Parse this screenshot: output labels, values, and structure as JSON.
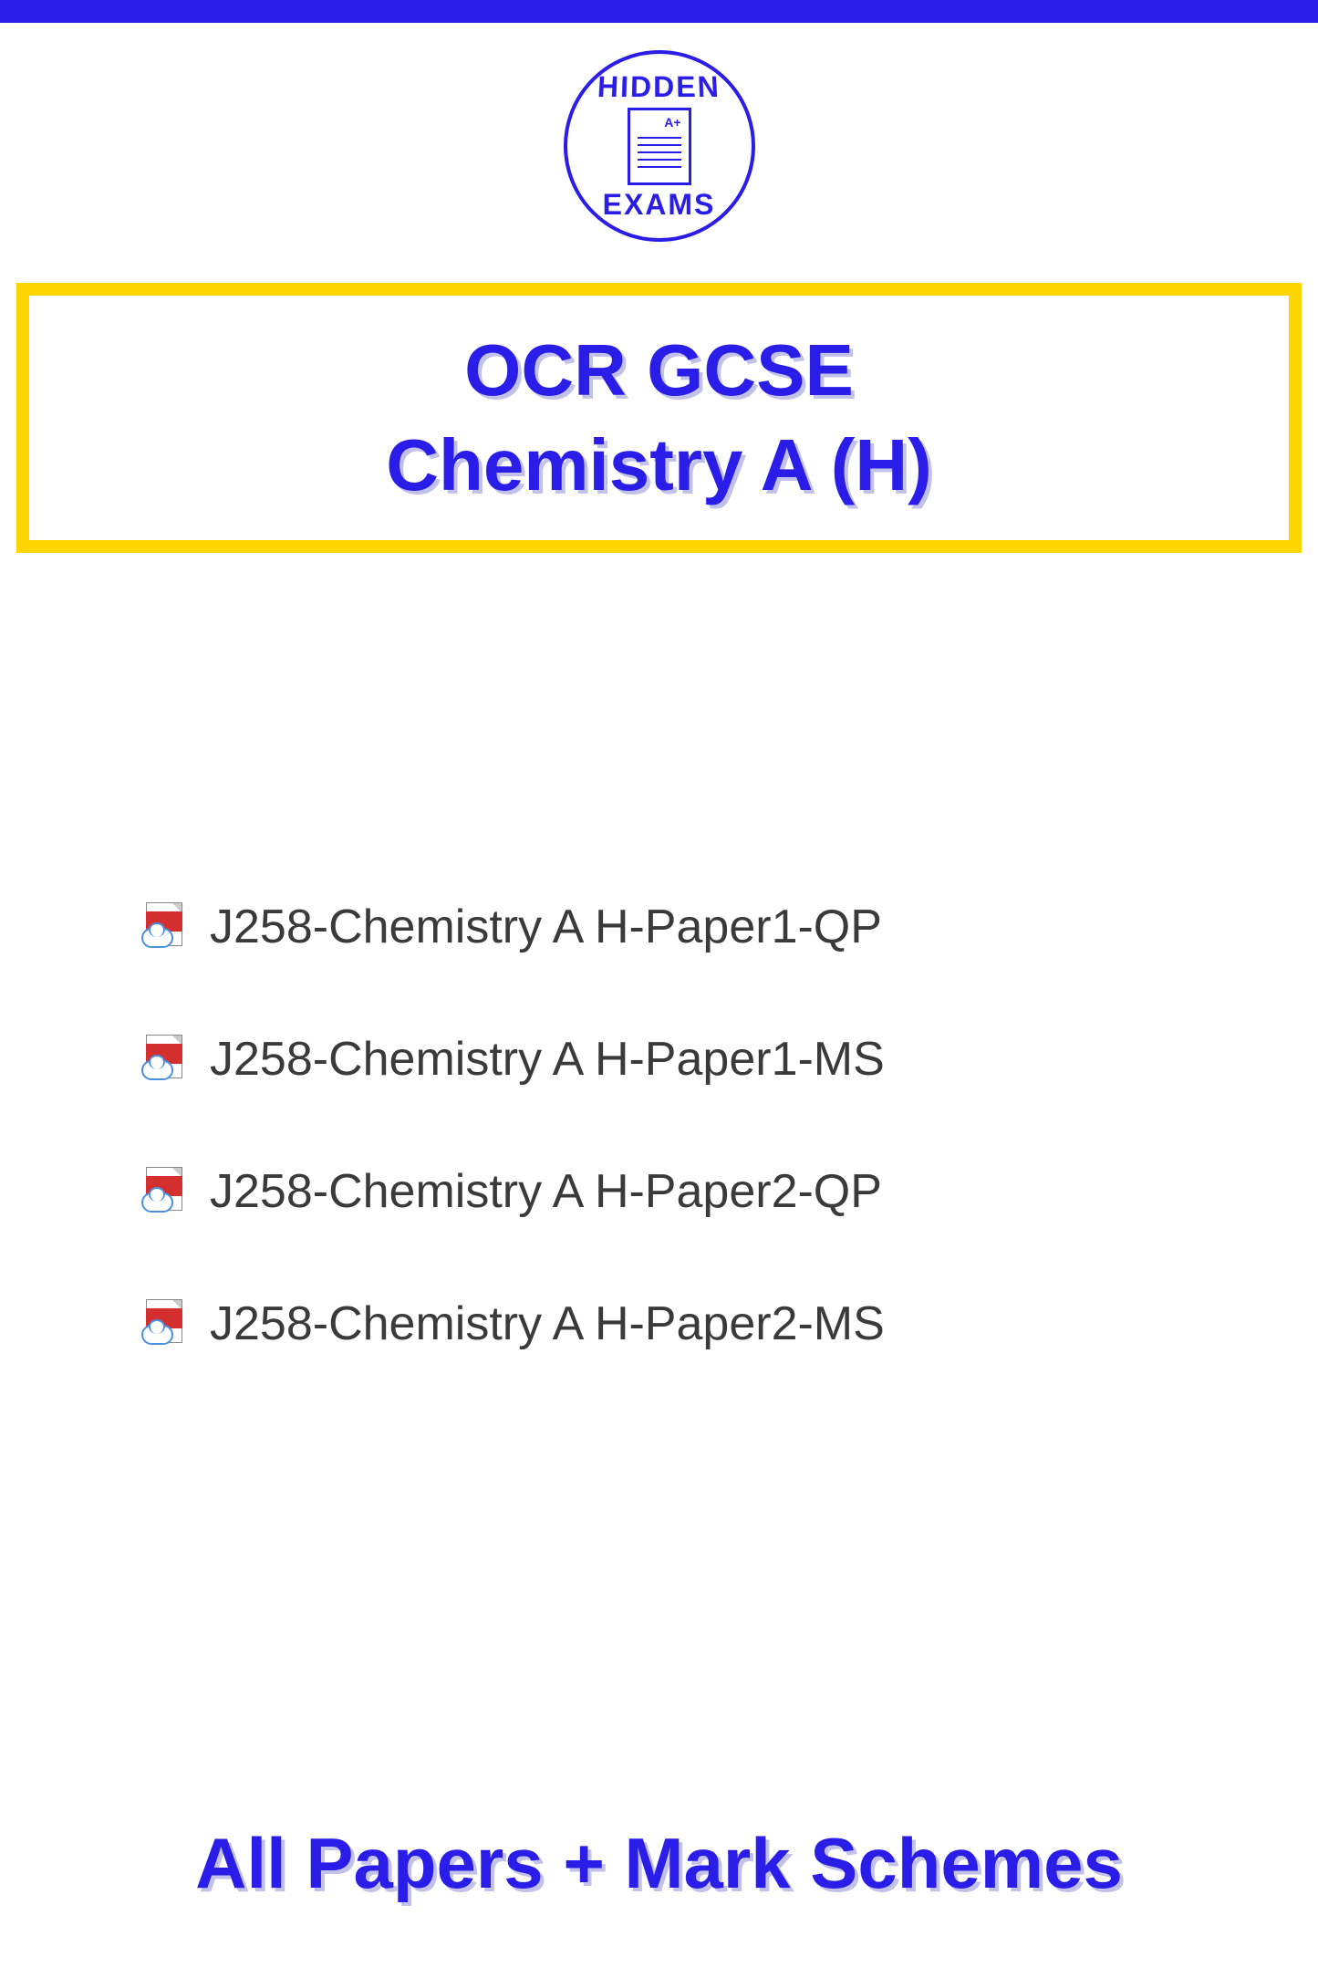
{
  "logo": {
    "top_text": "HIDDEN",
    "bottom_text": "EXAMS",
    "paper_grade": "A+"
  },
  "title": {
    "line1": "OCR GCSE",
    "line2": "Chemistry A (H)"
  },
  "colors": {
    "primary": "#2b1de8",
    "accent": "#ffd500",
    "text": "#3a3a3a",
    "background": "#ffffff"
  },
  "files": [
    {
      "name": "J258-Chemistry A H-Paper1-QP"
    },
    {
      "name": "J258-Chemistry A H-Paper1-MS"
    },
    {
      "name": "J258-Chemistry A H-Paper2-QP"
    },
    {
      "name": "J258-Chemistry A H-Paper2-MS"
    }
  ],
  "footer": "All Papers + Mark Schemes"
}
